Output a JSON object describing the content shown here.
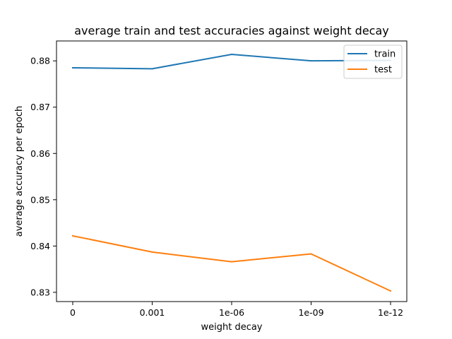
{
  "chart_data": {
    "type": "line",
    "title": "average train and test accuracies against weight decay",
    "xlabel": "weight decay",
    "ylabel": "average accuracy per epoch",
    "categories": [
      "0",
      "0.001",
      "1e-06",
      "1e-09",
      "1e-12"
    ],
    "series": [
      {
        "name": "train",
        "color": "#1f77b4",
        "values": [
          0.8785,
          0.8783,
          0.8814,
          0.88,
          0.8801
        ]
      },
      {
        "name": "test",
        "color": "#ff7f0e",
        "values": [
          0.8422,
          0.8387,
          0.8366,
          0.8383,
          0.8303
        ]
      }
    ],
    "yticks": [
      "0.83",
      "0.84",
      "0.85",
      "0.86",
      "0.87",
      "0.88"
    ],
    "ylim": [
      0.828,
      0.8843
    ],
    "grid": false,
    "legend": "top-right"
  }
}
